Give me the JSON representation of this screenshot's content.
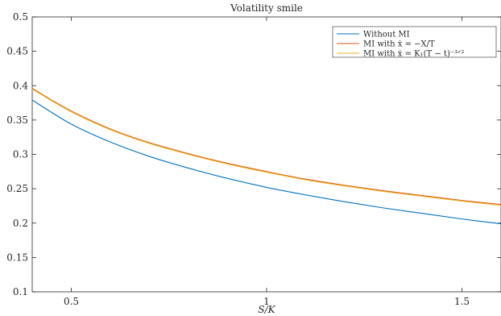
{
  "chart_data": {
    "type": "line",
    "title": "Volatility smile",
    "xlabel": "S/K",
    "ylabel": "",
    "xlim": [
      0.4,
      1.6
    ],
    "ylim": [
      0.1,
      0.5
    ],
    "xticks": [
      0.5,
      1,
      1.5
    ],
    "xtick_labels": [
      "0.5",
      "1",
      "1.5"
    ],
    "yticks": [
      0.1,
      0.15,
      0.2,
      0.25,
      0.3,
      0.35,
      0.4,
      0.45,
      0.5
    ],
    "ytick_labels": [
      "0.1",
      "0.15",
      "0.2",
      "0.25",
      "0.3",
      "0.35",
      "0.4",
      "0.45",
      "0.5"
    ],
    "grid": false,
    "legend_position": "top-right",
    "x": [
      0.4,
      0.5,
      0.6,
      0.7,
      0.8,
      0.9,
      1.0,
      1.1,
      1.2,
      1.3,
      1.4,
      1.5,
      1.6
    ],
    "series": [
      {
        "name": "Without MI",
        "color": "#0072BD",
        "values": [
          0.379,
          0.344,
          0.318,
          0.297,
          0.28,
          0.265,
          0.252,
          0.241,
          0.231,
          0.222,
          0.214,
          0.206,
          0.199
        ]
      },
      {
        "name": "MI with ẋ = −X/T",
        "color": "#D95319",
        "values": [
          0.396,
          0.363,
          0.337,
          0.317,
          0.301,
          0.287,
          0.275,
          0.264,
          0.255,
          0.247,
          0.24,
          0.233,
          0.227
        ]
      },
      {
        "name": "MI with ẋ = K₁(T − t)⁻³ᐟ²",
        "color": "#EDB120",
        "values": [
          0.395,
          0.362,
          0.336,
          0.316,
          0.3,
          0.286,
          0.274,
          0.263,
          0.254,
          0.246,
          0.239,
          0.232,
          0.226
        ]
      }
    ]
  }
}
